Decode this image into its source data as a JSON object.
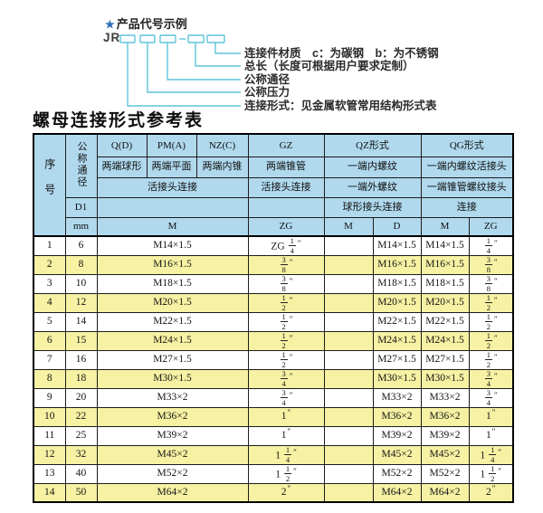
{
  "colors": {
    "header-blue": "#b0d9ee",
    "row-yellow": "#f6f1a3",
    "diagram-cyan": "#5ec4d8",
    "star-blue": "#2e6db4",
    "border-dark": "#1c1c1c"
  },
  "diagram": {
    "star": "★",
    "heading": "产品代号示例",
    "code_prefix": "JR",
    "labels": [
      "连接件材质　c：为碳钢　b：为不锈钢",
      "总长（长度可根据用户要求定制）",
      "公称通径",
      "公称压力",
      "连接形式：见金属软管常用结构形式表"
    ]
  },
  "title": "螺母连接形式参考表",
  "table": {
    "header": {
      "seq": "序号",
      "dn": "公称通径",
      "d1": "D1",
      "mm": "mm",
      "q": "Q(D)",
      "pm": "PM(A)",
      "nz": "NZ(C)",
      "gz": "GZ",
      "qz": "QZ形式",
      "qg": "QG形式",
      "q_desc": "两端球形",
      "pm_desc": "两端平面",
      "nz_desc": "两端内锥",
      "gz_desc": "两端锥管",
      "qz_desc1": "一端内螺纹",
      "qg_desc1": "一端内螺纹活接头",
      "union_conn": "活接头连接",
      "gz_conn": "活接头连接",
      "qz_desc2": "一端外螺纹",
      "qg_desc2": "一端锥管螺纹接头",
      "d1_blank_left": "",
      "d1_blank_gz": "",
      "qz_conn": "球形接头连接",
      "qg_conn": "连接",
      "m_sub": "M",
      "gz_zg_sub": "ZG",
      "qz_m_sub": "M",
      "qz_d_sub": "D",
      "qg_m_sub": "M",
      "qg_zg_sub": "ZG"
    },
    "rows": [
      {
        "seq": "1",
        "dn": "6",
        "m": "M14×1.5",
        "gz": "ZG 1/4\"",
        "qz_m": "",
        "qz_d": "M14×1.5",
        "qg_m": "M14×1.5",
        "qg_zg": "1/4\""
      },
      {
        "seq": "2",
        "dn": "8",
        "m": "M16×1.5",
        "gz": "3/8\"",
        "qz_m": "",
        "qz_d": "M16×1.5",
        "qg_m": "M16×1.5",
        "qg_zg": "3/8\""
      },
      {
        "seq": "3",
        "dn": "10",
        "m": "M18×1.5",
        "gz": "3/8\"",
        "qz_m": "",
        "qz_d": "M18×1.5",
        "qg_m": "M18×1.5",
        "qg_zg": "3/8\""
      },
      {
        "seq": "4",
        "dn": "12",
        "m": "M20×1.5",
        "gz": "1/2\"",
        "qz_m": "",
        "qz_d": "M20×1.5",
        "qg_m": "M20×1.5",
        "qg_zg": "1/2\""
      },
      {
        "seq": "5",
        "dn": "14",
        "m": "M22×1.5",
        "gz": "1/2\"",
        "qz_m": "",
        "qz_d": "M22×1.5",
        "qg_m": "M22×1.5",
        "qg_zg": "1/2\""
      },
      {
        "seq": "6",
        "dn": "15",
        "m": "M24×1.5",
        "gz": "1/2\"",
        "qz_m": "",
        "qz_d": "M24×1.5",
        "qg_m": "M24×1.5",
        "qg_zg": "1/2\""
      },
      {
        "seq": "7",
        "dn": "16",
        "m": "M27×1.5",
        "gz": "1/2\"",
        "qz_m": "",
        "qz_d": "M27×1.5",
        "qg_m": "M27×1.5",
        "qg_zg": "1/2\""
      },
      {
        "seq": "8",
        "dn": "18",
        "m": "M30×1.5",
        "gz": "3/4\"",
        "qz_m": "",
        "qz_d": "M30×1.5",
        "qg_m": "M30×1.5",
        "qg_zg": "3/4\""
      },
      {
        "seq": "9",
        "dn": "20",
        "m": "M33×2",
        "gz": "3/4\"",
        "qz_m": "",
        "qz_d": "M33×2",
        "qg_m": "M33×2",
        "qg_zg": "3/4\""
      },
      {
        "seq": "10",
        "dn": "22",
        "m": "M36×2",
        "gz": "1\"",
        "qz_m": "",
        "qz_d": "M36×2",
        "qg_m": "M36×2",
        "qg_zg": "1\""
      },
      {
        "seq": "11",
        "dn": "25",
        "m": "M39×2",
        "gz": "1\"",
        "qz_m": "",
        "qz_d": "M39×2",
        "qg_m": "M39×2",
        "qg_zg": "1\""
      },
      {
        "seq": "12",
        "dn": "32",
        "m": "M45×2",
        "gz": "1 1/4\"",
        "qz_m": "",
        "qz_d": "M45×2",
        "qg_m": "M45×2",
        "qg_zg": "1 1/4\""
      },
      {
        "seq": "13",
        "dn": "40",
        "m": "M52×2",
        "gz": "1 1/2\"",
        "qz_m": "",
        "qz_d": "M52×2",
        "qg_m": "M52×2",
        "qg_zg": "1 1/2\""
      },
      {
        "seq": "14",
        "dn": "50",
        "m": "M64×2",
        "gz": "2\"",
        "qz_m": "",
        "qz_d": "M64×2",
        "qg_m": "M64×2",
        "qg_zg": "2\""
      }
    ]
  }
}
